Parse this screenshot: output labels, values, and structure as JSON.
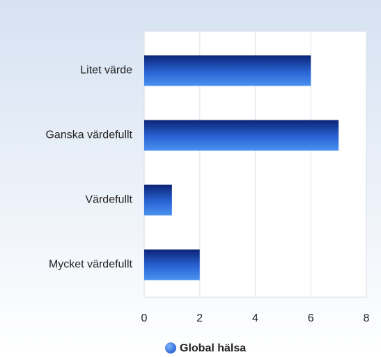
{
  "chart_data": {
    "type": "bar",
    "orientation": "horizontal",
    "categories": [
      "Litet värde",
      "Ganska värdefullt",
      "Värdefullt",
      "Mycket värdefullt"
    ],
    "series": [
      {
        "name": "Global hälsa",
        "color": "#2a64d4",
        "values": [
          6,
          7,
          1,
          2
        ]
      }
    ],
    "xlim": [
      0,
      8
    ],
    "xticks": [
      0,
      2,
      4,
      6,
      8
    ],
    "grid": true,
    "legend": "bottom"
  }
}
